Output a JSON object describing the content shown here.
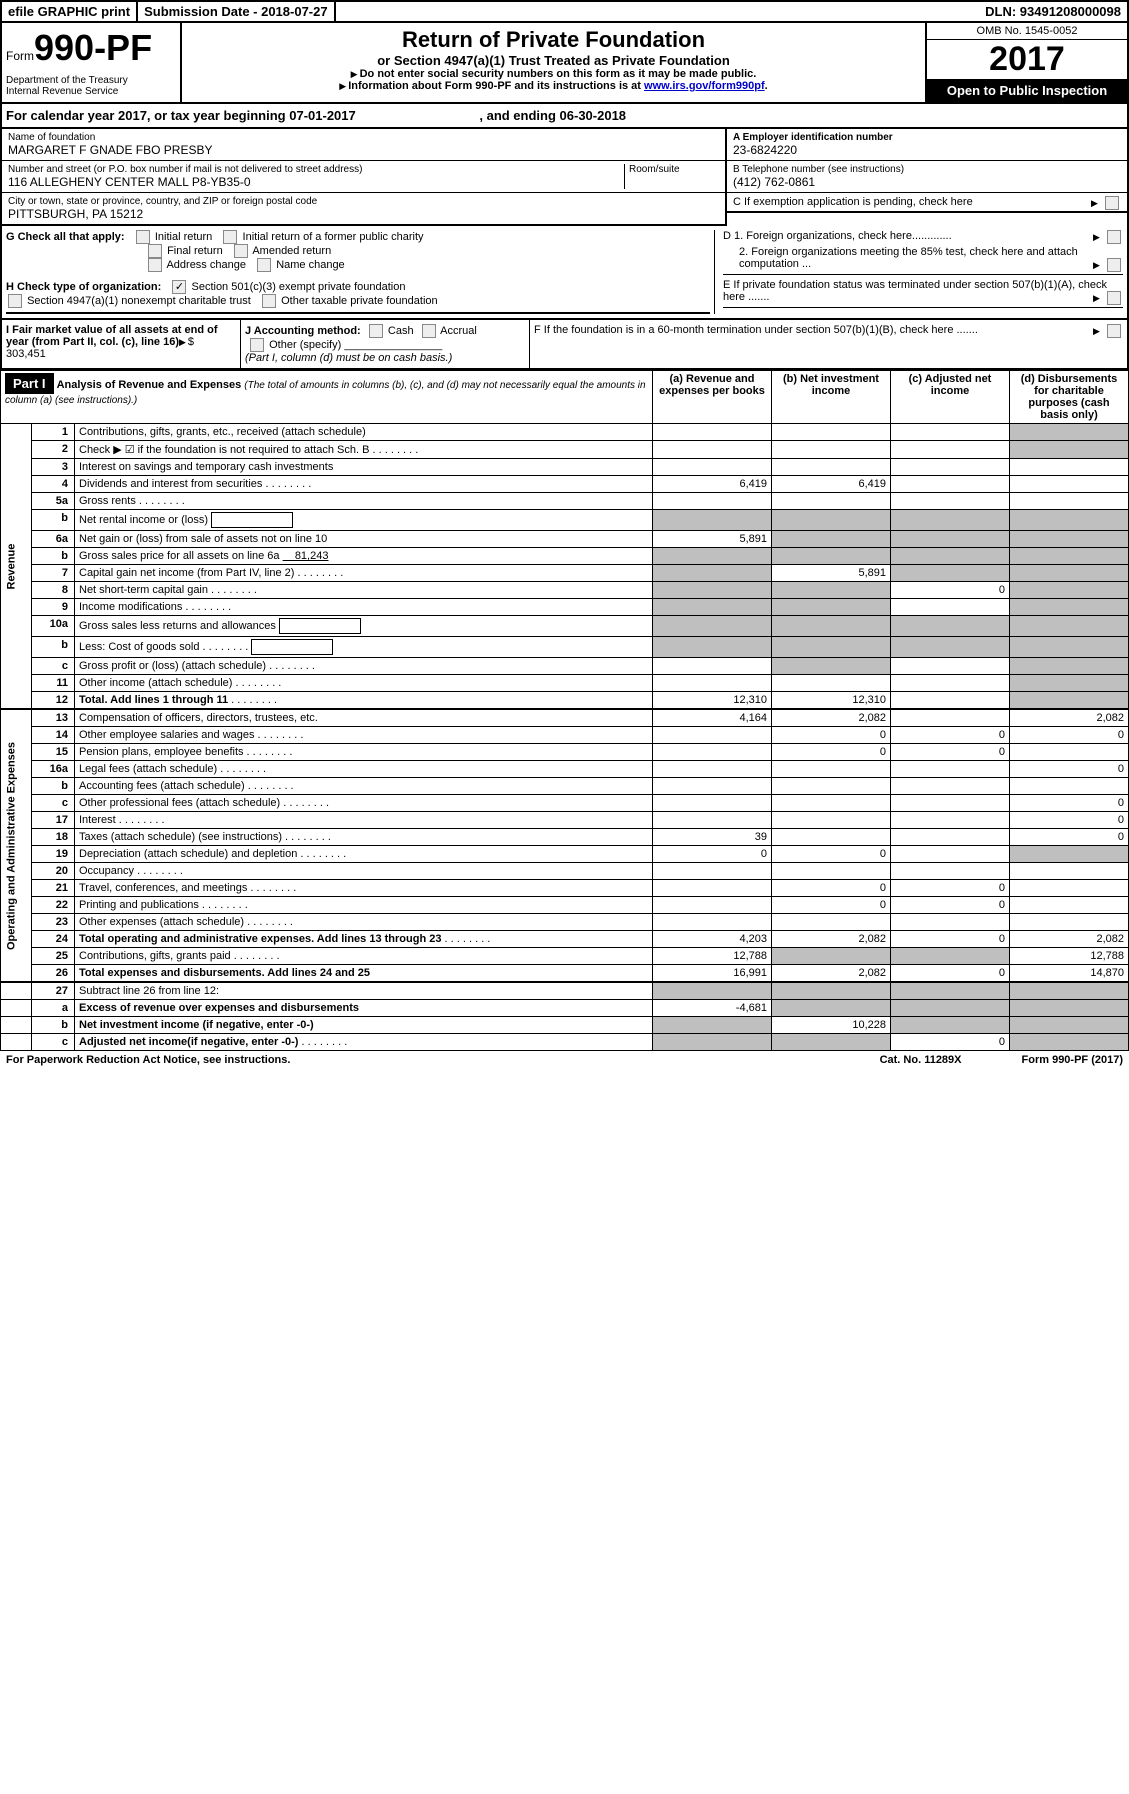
{
  "header_bar": {
    "efile": "efile GRAPHIC print",
    "submission": "Submission Date - 2018-07-27",
    "dln": "DLN: 93491208000098"
  },
  "form_head": {
    "form_word": "Form",
    "form_number": "990-PF",
    "dept": "Department of the Treasury",
    "irs": "Internal Revenue Service",
    "title": "Return of Private Foundation",
    "subtitle": "or Section 4947(a)(1) Trust Treated as Private Foundation",
    "note1": "Do not enter social security numbers on this form as it may be made public.",
    "note2_pre": "Information about Form 990-PF and its instructions is at ",
    "note2_link": "www.irs.gov/form990pf",
    "omb": "OMB No. 1545-0052",
    "year": "2017",
    "open": "Open to Public Inspection"
  },
  "calendar": {
    "pre": "For calendar year 2017, or tax year beginning ",
    "begin": "07-01-2017",
    "mid": ", and ending ",
    "end": "06-30-2018"
  },
  "foundation": {
    "name_lbl": "Name of foundation",
    "name": "MARGARET F GNADE FBO PRESBY",
    "addr_lbl": "Number and street (or P.O. box number if mail is not delivered to street address)",
    "room_lbl": "Room/suite",
    "addr": "116 ALLEGHENY CENTER MALL P8-YB35-0",
    "city_lbl": "City or town, state or province, country, and ZIP or foreign postal code",
    "city": "PITTSBURGH, PA  15212",
    "ein_lbl": "A Employer identification number",
    "ein": "23-6824220",
    "tel_lbl": "B Telephone number (see instructions)",
    "tel": "(412) 762-0861",
    "c_lbl": "C If exemption application is pending, check here"
  },
  "g": {
    "label": "G Check all that apply:",
    "opts": [
      "Initial return",
      "Initial return of a former public charity",
      "Final return",
      "Amended return",
      "Address change",
      "Name change"
    ]
  },
  "h": {
    "label": "H Check type of organization:",
    "o1": "Section 501(c)(3) exempt private foundation",
    "o2": "Section 4947(a)(1) nonexempt charitable trust",
    "o3": "Other taxable private foundation"
  },
  "d": {
    "d1": "D 1. Foreign organizations, check here.............",
    "d2": "2. Foreign organizations meeting the 85% test, check here and attach computation ...",
    "e": "E  If private foundation status was terminated under section 507(b)(1)(A), check here .......",
    "f": "F  If the foundation is in a 60-month termination under section 507(b)(1)(B), check here ......."
  },
  "i": {
    "label": "I Fair market value of all assets at end of year (from Part II, col. (c), line 16)",
    "val": "$  303,451"
  },
  "j": {
    "label": "J Accounting method:",
    "cash": "Cash",
    "accrual": "Accrual",
    "other": "Other (specify)",
    "note": "(Part I, column (d) must be on cash basis.)"
  },
  "part1": {
    "hdr": "Part I",
    "title": "Analysis of Revenue and Expenses",
    "note": "(The total of amounts in columns (b), (c), and (d) may not necessarily equal the amounts in column (a) (see instructions).)",
    "cols": {
      "a": "(a)   Revenue and expenses per books",
      "b": "(b)   Net investment income",
      "c": "(c)   Adjusted net income",
      "d": "(d)   Disbursements for charitable purposes (cash basis only)"
    }
  },
  "sections": {
    "revenue": "Revenue",
    "expenses": "Operating and Administrative Expenses"
  },
  "rows": [
    {
      "n": "1",
      "d": "Contributions, gifts, grants, etc., received (attach schedule)",
      "a": "",
      "b": "",
      "c": "",
      "e": "",
      "shade_d": true
    },
    {
      "n": "2",
      "d": "Check ▶ ☑ if the foundation is not required to attach Sch. B",
      "dots": true,
      "a": "",
      "b": "",
      "c": "",
      "e": "",
      "shade_d": true,
      "bold_not": true
    },
    {
      "n": "3",
      "d": "Interest on savings and temporary cash investments",
      "a": "",
      "b": "",
      "c": "",
      "e": ""
    },
    {
      "n": "4",
      "d": "Dividends and interest from securities",
      "dots": true,
      "a": "6,419",
      "b": "6,419",
      "c": "",
      "e": ""
    },
    {
      "n": "5a",
      "d": "Gross rents",
      "dots": true,
      "a": "",
      "b": "",
      "c": "",
      "e": ""
    },
    {
      "n": "b",
      "d": "Net rental income or (loss)",
      "box": true,
      "shade_abcd": true
    },
    {
      "n": "6a",
      "d": "Net gain or (loss) from sale of assets not on line 10",
      "a": "5,891",
      "shade_bcd": true
    },
    {
      "n": "b",
      "d": "Gross sales price for all assets on line 6a",
      "val": "81,243",
      "shade_abcd": true
    },
    {
      "n": "7",
      "d": "Capital gain net income (from Part IV, line 2)",
      "dots": true,
      "b": "5,891",
      "shade_a": true,
      "shade_cd": true
    },
    {
      "n": "8",
      "d": "Net short-term capital gain",
      "dots": true,
      "c": "0",
      "shade_ab": true,
      "shade_d": true
    },
    {
      "n": "9",
      "d": "Income modifications",
      "dots": true,
      "shade_ab": true,
      "c": "",
      "shade_d": true
    },
    {
      "n": "10a",
      "d": "Gross sales less returns and allowances",
      "box": true,
      "shade_abcd": true
    },
    {
      "n": "b",
      "d": "Less: Cost of goods sold",
      "dots": true,
      "box": true,
      "shade_abcd": true
    },
    {
      "n": "c",
      "d": "Gross profit or (loss) (attach schedule)",
      "dots": true,
      "a": "",
      "shade_b": true,
      "c": "",
      "shade_d": true
    },
    {
      "n": "11",
      "d": "Other income (attach schedule)",
      "dots": true,
      "a": "",
      "b": "",
      "c": "",
      "shade_d": true
    },
    {
      "n": "12",
      "d": "Total. Add lines 1 through 11",
      "bold": true,
      "dots": true,
      "a": "12,310",
      "b": "12,310",
      "c": "",
      "shade_d": true,
      "hr": true
    }
  ],
  "exp_rows": [
    {
      "n": "13",
      "d": "Compensation of officers, directors, trustees, etc.",
      "a": "4,164",
      "b": "2,082",
      "c": "",
      "e": "2,082"
    },
    {
      "n": "14",
      "d": "Other employee salaries and wages",
      "dots": true,
      "a": "",
      "b": "0",
      "c": "0",
      "e": "0"
    },
    {
      "n": "15",
      "d": "Pension plans, employee benefits",
      "dots": true,
      "a": "",
      "b": "0",
      "c": "0",
      "e": ""
    },
    {
      "n": "16a",
      "d": "Legal fees (attach schedule)",
      "dots": true,
      "a": "",
      "b": "",
      "c": "",
      "e": "0"
    },
    {
      "n": "b",
      "d": "Accounting fees (attach schedule)",
      "dots": true,
      "a": "",
      "b": "",
      "c": "",
      "e": ""
    },
    {
      "n": "c",
      "d": "Other professional fees (attach schedule)",
      "dots": true,
      "a": "",
      "b": "",
      "c": "",
      "e": "0"
    },
    {
      "n": "17",
      "d": "Interest",
      "dots": true,
      "a": "",
      "b": "",
      "c": "",
      "e": "0"
    },
    {
      "n": "18",
      "d": "Taxes (attach schedule) (see instructions)",
      "dots": true,
      "a": "39",
      "b": "",
      "c": "",
      "e": "0"
    },
    {
      "n": "19",
      "d": "Depreciation (attach schedule) and depletion",
      "dots": true,
      "a": "0",
      "b": "0",
      "c": "",
      "shade_d": true
    },
    {
      "n": "20",
      "d": "Occupancy",
      "dots": true,
      "a": "",
      "b": "",
      "c": "",
      "e": ""
    },
    {
      "n": "21",
      "d": "Travel, conferences, and meetings",
      "dots": true,
      "a": "",
      "b": "0",
      "c": "0",
      "e": ""
    },
    {
      "n": "22",
      "d": "Printing and publications",
      "dots": true,
      "a": "",
      "b": "0",
      "c": "0",
      "e": ""
    },
    {
      "n": "23",
      "d": "Other expenses (attach schedule)",
      "dots": true,
      "a": "",
      "b": "",
      "c": "",
      "e": ""
    },
    {
      "n": "24",
      "d": "Total operating and administrative expenses. Add lines 13 through 23",
      "bold": true,
      "dots": true,
      "a": "4,203",
      "b": "2,082",
      "c": "0",
      "e": "2,082"
    },
    {
      "n": "25",
      "d": "Contributions, gifts, grants paid",
      "dots": true,
      "a": "12,788",
      "shade_bc": true,
      "e": "12,788"
    },
    {
      "n": "26",
      "d": "Total expenses and disbursements. Add lines 24 and 25",
      "bold": true,
      "a": "16,991",
      "b": "2,082",
      "c": "0",
      "e": "14,870",
      "hr": true
    }
  ],
  "final_rows": [
    {
      "n": "27",
      "d": "Subtract line 26 from line 12:",
      "shade_abcd": true
    },
    {
      "n": "a",
      "d": "Excess of revenue over expenses and disbursements",
      "bold": true,
      "a": "-4,681",
      "shade_bcd": true
    },
    {
      "n": "b",
      "d": "Net investment income (if negative, enter -0-)",
      "bold": true,
      "b": "10,228",
      "shade_a": true,
      "shade_cd": true
    },
    {
      "n": "c",
      "d": "Adjusted net income(if negative, enter -0-)",
      "bold": true,
      "dots": true,
      "c": "0",
      "shade_ab": true,
      "shade_d": true
    }
  ],
  "footer": {
    "left": "For Paperwork Reduction Act Notice, see instructions.",
    "mid": "Cat. No. 11289X",
    "right": "Form 990-PF (2017)"
  }
}
